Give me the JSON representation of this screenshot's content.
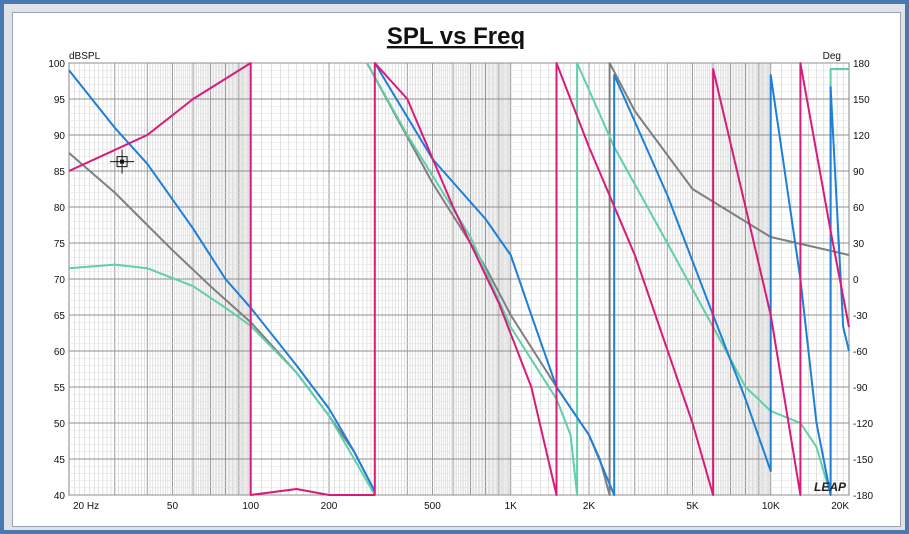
{
  "chart_data": {
    "type": "line",
    "title": "SPL vs Freq",
    "ylabel_left": "dBSPL",
    "ylabel_right": "Deg",
    "x_scale": "log",
    "xlim": [
      20,
      20000
    ],
    "ylim_left": [
      40,
      100
    ],
    "ylim_right": [
      -180,
      180
    ],
    "grid": true,
    "x_ticks": [
      {
        "value": 20,
        "label": "20 Hz"
      },
      {
        "value": 50,
        "label": "50"
      },
      {
        "value": 100,
        "label": "100"
      },
      {
        "value": 200,
        "label": "200"
      },
      {
        "value": 500,
        "label": "500"
      },
      {
        "value": 1000,
        "label": "1K"
      },
      {
        "value": 2000,
        "label": "2K"
      },
      {
        "value": 5000,
        "label": "5K"
      },
      {
        "value": 10000,
        "label": "10K"
      },
      {
        "value": 20000,
        "label": "20K"
      }
    ],
    "y_ticks_left": [
      "100",
      "95",
      "90",
      "85",
      "80",
      "75",
      "70",
      "65",
      "60",
      "55",
      "50",
      "45",
      "40"
    ],
    "y_ticks_right": [
      "180",
      "150",
      "120",
      "90",
      "60",
      "30",
      "0",
      "-30",
      "-60",
      "-90",
      "-120",
      "-150",
      "-180"
    ],
    "watermark": "LEAP",
    "cursor": {
      "x": 32,
      "y": 86.3
    },
    "series": [
      {
        "color": "#7f7f7f",
        "axis": "left",
        "points": [
          [
            20,
            87.5
          ],
          [
            30,
            82
          ],
          [
            50,
            74
          ],
          [
            70,
            69
          ],
          [
            100,
            64
          ],
          [
            150,
            57
          ],
          [
            200,
            51
          ],
          [
            250,
            46
          ],
          [
            300,
            40.5
          ]
        ]
      },
      {
        "color": "#5fcfa8",
        "axis": "left",
        "points": [
          [
            20,
            71.5
          ],
          [
            30,
            72
          ],
          [
            40,
            71.5
          ],
          [
            60,
            69
          ],
          [
            80,
            66
          ],
          [
            100,
            63.5
          ],
          [
            150,
            57
          ],
          [
            200,
            51
          ],
          [
            250,
            45
          ],
          [
            300,
            40
          ]
        ]
      },
      {
        "color": "#1e7fd6",
        "axis": "left",
        "points": [
          [
            20,
            99
          ],
          [
            30,
            91
          ],
          [
            40,
            86
          ],
          [
            60,
            77
          ],
          [
            80,
            70
          ],
          [
            100,
            66
          ],
          [
            150,
            58
          ],
          [
            200,
            52
          ],
          [
            250,
            46
          ],
          [
            300,
            40.5
          ]
        ]
      },
      {
        "color": "#7f7f7f",
        "axis": "right",
        "points": [
          [
            280,
            180
          ],
          [
            500,
            80
          ],
          [
            800,
            10
          ],
          [
            1000,
            -30
          ],
          [
            1500,
            -90
          ],
          [
            2000,
            -130
          ],
          [
            2200,
            -150
          ],
          [
            2400,
            -180
          ],
          [
            2400,
            180
          ],
          [
            3000,
            140
          ],
          [
            5000,
            75
          ],
          [
            10000,
            35
          ],
          [
            20000,
            20
          ]
        ]
      },
      {
        "color": "#5fcfa8",
        "axis": "right",
        "points": [
          [
            280,
            180
          ],
          [
            400,
            120
          ],
          [
            700,
            35
          ],
          [
            1000,
            -40
          ],
          [
            1500,
            -100
          ],
          [
            1700,
            -130
          ],
          [
            1800,
            -180
          ],
          [
            1800,
            180
          ],
          [
            2500,
            110
          ],
          [
            4000,
            30
          ],
          [
            6000,
            -40
          ],
          [
            8000,
            -90
          ],
          [
            10000,
            -110
          ],
          [
            13000,
            -120
          ],
          [
            15000,
            -140
          ],
          [
            17000,
            -180
          ],
          [
            17000,
            175
          ],
          [
            20000,
            175
          ]
        ]
      },
      {
        "color": "#1e7fd6",
        "axis": "right",
        "points": [
          [
            300,
            180
          ],
          [
            500,
            100
          ],
          [
            800,
            50
          ],
          [
            1000,
            20
          ],
          [
            1200,
            -30
          ],
          [
            1500,
            -90
          ],
          [
            2000,
            -130
          ],
          [
            2500,
            -180
          ],
          [
            2500,
            170
          ],
          [
            4000,
            70
          ],
          [
            6000,
            -30
          ],
          [
            8000,
            -100
          ],
          [
            10000,
            -160
          ],
          [
            10000,
            170
          ],
          [
            13000,
            0
          ],
          [
            15000,
            -120
          ],
          [
            17000,
            -180
          ],
          [
            17000,
            160
          ],
          [
            19000,
            -40
          ],
          [
            20000,
            -60
          ]
        ]
      },
      {
        "color": "#d81b7a",
        "axis": "right",
        "points": [
          [
            20,
            90
          ],
          [
            40,
            120
          ],
          [
            60,
            150
          ],
          [
            100,
            180
          ],
          [
            100,
            -180
          ],
          [
            150,
            -175
          ],
          [
            200,
            -180
          ],
          [
            300,
            -180
          ],
          [
            300,
            180
          ],
          [
            400,
            150
          ],
          [
            600,
            60
          ],
          [
            900,
            -20
          ],
          [
            1200,
            -90
          ],
          [
            1500,
            -180
          ],
          [
            1500,
            180
          ],
          [
            2000,
            110
          ],
          [
            3000,
            20
          ],
          [
            5000,
            -120
          ],
          [
            6000,
            -180
          ],
          [
            6000,
            175
          ],
          [
            8000,
            60
          ],
          [
            10000,
            -30
          ],
          [
            13000,
            -180
          ],
          [
            13000,
            180
          ],
          [
            17000,
            40
          ],
          [
            20000,
            -40
          ]
        ]
      }
    ]
  }
}
